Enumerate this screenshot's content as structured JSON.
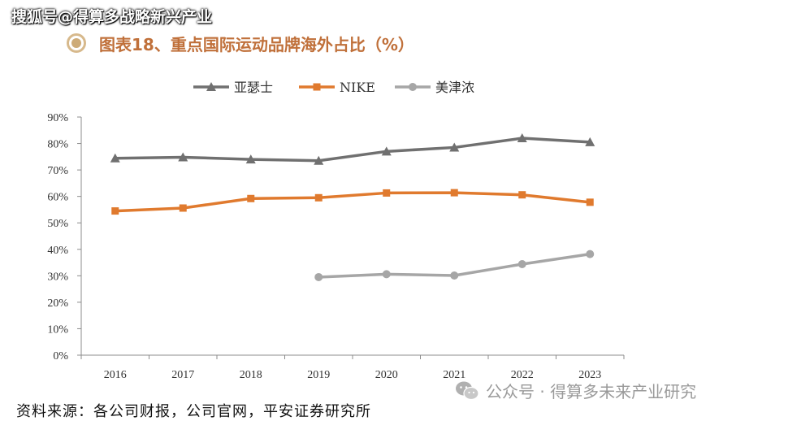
{
  "watermark_top": "搜狐号@得算多战略新兴产业",
  "title": "图表18、重点国际运动品牌海外占比（%）",
  "source": "资料来源：各公司财报，公司官网，平安证券研究所",
  "wechat_watermark": "公众号 · 得算多未来产业研究",
  "chart_data": {
    "type": "line",
    "categories": [
      "2016",
      "2017",
      "2018",
      "2019",
      "2020",
      "2021",
      "2022",
      "2023"
    ],
    "yticks": [
      "0%",
      "10%",
      "20%",
      "30%",
      "40%",
      "50%",
      "60%",
      "70%",
      "80%",
      "90%"
    ],
    "ylim": [
      0,
      90
    ],
    "legend_position": "top",
    "grid": false,
    "series": [
      {
        "name": "亚瑟士",
        "color": "#707070",
        "marker": "triangle",
        "values": [
          74.4,
          74.8,
          74.0,
          73.5,
          77.0,
          78.5,
          82.0,
          80.5
        ]
      },
      {
        "name": "NIKE",
        "color": "#e07a2e",
        "marker": "square",
        "values": [
          54.5,
          55.6,
          59.2,
          59.5,
          61.3,
          61.4,
          60.6,
          57.8
        ]
      },
      {
        "name": "美津浓",
        "color": "#a6a6a6",
        "marker": "circle",
        "values": [
          null,
          null,
          null,
          29.5,
          30.6,
          30.1,
          34.4,
          38.2
        ]
      }
    ]
  }
}
